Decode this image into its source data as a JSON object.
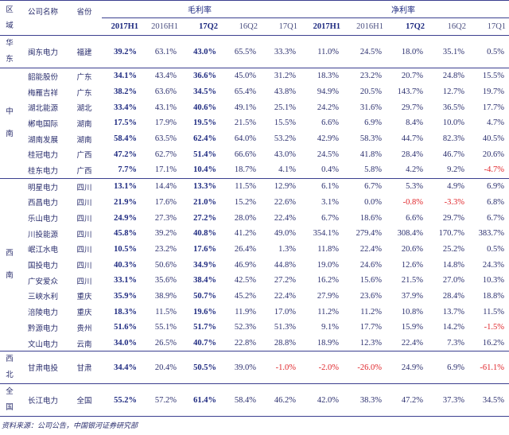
{
  "header": {
    "region": "区域",
    "company": "公司名称",
    "province": "省份",
    "gross_margin": "毛利率",
    "net_margin": "净利率",
    "periods": [
      "2017H1",
      "2016H1",
      "17Q2",
      "16Q2",
      "17Q1"
    ]
  },
  "groups": [
    {
      "region": "华东",
      "rows": [
        {
          "name": "闽东电力",
          "province": "福建",
          "values": [
            "39.2%",
            "63.1%",
            "43.0%",
            "65.5%",
            "33.3%",
            "11.0%",
            "24.5%",
            "18.0%",
            "35.1%",
            "0.5%"
          ]
        }
      ]
    },
    {
      "region": "中南",
      "rows": [
        {
          "name": "韶能股份",
          "province": "广东",
          "values": [
            "34.1%",
            "43.4%",
            "36.6%",
            "45.0%",
            "31.2%",
            "18.3%",
            "23.2%",
            "20.7%",
            "24.8%",
            "15.5%"
          ]
        },
        {
          "name": "梅雁吉祥",
          "province": "广东",
          "values": [
            "38.2%",
            "63.6%",
            "34.5%",
            "65.4%",
            "43.8%",
            "94.9%",
            "20.5%",
            "143.7%",
            "12.7%",
            "19.7%"
          ]
        },
        {
          "name": "湖北能源",
          "province": "湖北",
          "values": [
            "33.4%",
            "43.1%",
            "40.6%",
            "49.1%",
            "25.1%",
            "24.2%",
            "31.6%",
            "29.7%",
            "36.5%",
            "17.7%"
          ]
        },
        {
          "name": "郴电国际",
          "province": "湖南",
          "values": [
            "17.5%",
            "17.9%",
            "19.5%",
            "21.5%",
            "15.5%",
            "6.6%",
            "6.9%",
            "8.4%",
            "10.0%",
            "4.7%"
          ]
        },
        {
          "name": "湖南发展",
          "province": "湖南",
          "values": [
            "58.4%",
            "63.5%",
            "62.4%",
            "64.0%",
            "53.2%",
            "42.9%",
            "58.3%",
            "44.7%",
            "82.3%",
            "40.5%"
          ]
        },
        {
          "name": "桂冠电力",
          "province": "广西",
          "values": [
            "47.2%",
            "62.7%",
            "51.4%",
            "66.6%",
            "43.0%",
            "24.5%",
            "41.8%",
            "28.4%",
            "46.7%",
            "20.6%"
          ]
        },
        {
          "name": "桂东电力",
          "province": "广西",
          "values": [
            "7.7%",
            "17.1%",
            "10.4%",
            "18.7%",
            "4.1%",
            "0.4%",
            "5.8%",
            "4.2%",
            "9.2%",
            "-4.7%"
          ]
        }
      ]
    },
    {
      "region": "西南",
      "rows": [
        {
          "name": "明星电力",
          "province": "四川",
          "values": [
            "13.1%",
            "14.4%",
            "13.3%",
            "11.5%",
            "12.9%",
            "6.1%",
            "6.7%",
            "5.3%",
            "4.9%",
            "6.9%"
          ]
        },
        {
          "name": "西昌电力",
          "province": "四川",
          "values": [
            "21.9%",
            "17.6%",
            "21.0%",
            "15.2%",
            "22.6%",
            "3.1%",
            "0.0%",
            "-0.8%",
            "-3.3%",
            "6.8%"
          ]
        },
        {
          "name": "乐山电力",
          "province": "四川",
          "values": [
            "24.9%",
            "27.3%",
            "27.2%",
            "28.0%",
            "22.4%",
            "6.7%",
            "18.6%",
            "6.6%",
            "29.7%",
            "6.7%"
          ]
        },
        {
          "name": "川投能源",
          "province": "四川",
          "values": [
            "45.8%",
            "39.2%",
            "40.8%",
            "41.2%",
            "49.0%",
            "354.1%",
            "279.4%",
            "308.4%",
            "170.7%",
            "383.7%"
          ]
        },
        {
          "name": "岷江水电",
          "province": "四川",
          "values": [
            "10.5%",
            "23.2%",
            "17.6%",
            "26.4%",
            "1.3%",
            "11.8%",
            "22.4%",
            "20.6%",
            "25.2%",
            "0.5%"
          ]
        },
        {
          "name": "国投电力",
          "province": "四川",
          "values": [
            "40.3%",
            "50.6%",
            "34.9%",
            "46.9%",
            "44.8%",
            "19.0%",
            "24.6%",
            "12.6%",
            "14.8%",
            "24.3%"
          ]
        },
        {
          "name": "广安爱众",
          "province": "四川",
          "values": [
            "33.1%",
            "35.6%",
            "38.4%",
            "42.5%",
            "27.2%",
            "16.2%",
            "15.6%",
            "21.5%",
            "27.0%",
            "10.3%"
          ]
        },
        {
          "name": "三峡水利",
          "province": "重庆",
          "values": [
            "35.9%",
            "38.9%",
            "50.7%",
            "45.2%",
            "22.4%",
            "27.9%",
            "23.6%",
            "37.9%",
            "28.4%",
            "18.8%"
          ]
        },
        {
          "name": "涪陵电力",
          "province": "重庆",
          "values": [
            "18.3%",
            "11.5%",
            "19.6%",
            "11.9%",
            "17.0%",
            "11.2%",
            "11.2%",
            "10.8%",
            "13.7%",
            "11.5%"
          ]
        },
        {
          "name": "黔源电力",
          "province": "贵州",
          "values": [
            "51.6%",
            "55.1%",
            "51.7%",
            "52.3%",
            "51.3%",
            "9.1%",
            "17.7%",
            "15.9%",
            "14.2%",
            "-1.5%"
          ]
        },
        {
          "name": "文山电力",
          "province": "云南",
          "values": [
            "34.0%",
            "26.5%",
            "40.7%",
            "22.8%",
            "28.8%",
            "18.9%",
            "12.3%",
            "22.4%",
            "7.3%",
            "16.2%"
          ]
        }
      ]
    },
    {
      "region": "西北",
      "rows": [
        {
          "name": "甘肃电投",
          "province": "甘肃",
          "values": [
            "34.4%",
            "20.4%",
            "50.5%",
            "39.0%",
            "-1.0%",
            "-2.0%",
            "-26.0%",
            "24.9%",
            "6.9%",
            "-61.1%"
          ]
        }
      ]
    },
    {
      "region": "全国",
      "rows": [
        {
          "name": "长江电力",
          "province": "全国",
          "values": [
            "55.2%",
            "57.2%",
            "61.4%",
            "58.4%",
            "46.2%",
            "42.0%",
            "38.3%",
            "47.2%",
            "37.3%",
            "34.5%"
          ]
        }
      ]
    }
  ],
  "colors": {
    "text": "#2b2f6e",
    "bold": "#1e2a80",
    "rule": "#3b3f8f",
    "negative": "#e0252a"
  },
  "source": "资料来源：公司公告，中国银河证券研究部"
}
